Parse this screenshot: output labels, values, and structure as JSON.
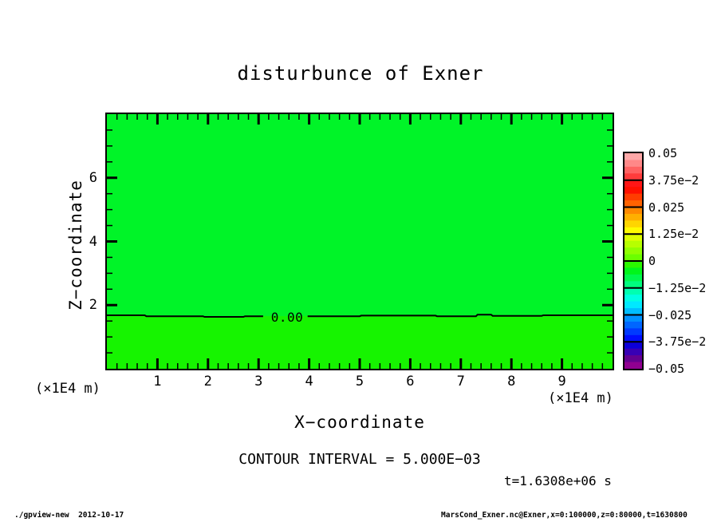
{
  "footer": {
    "left": "./gpview-new  2012-10-17",
    "right": "MarsCond_Exner.nc@Exner,x=0:100000,z=0:80000,t=1630800"
  },
  "annotations": {
    "contour_interval": "CONTOUR INTERVAL = 5.000E−03",
    "time": "t=1.6308e+06 s"
  },
  "chart_data": {
    "type": "heatmap",
    "title": "disturbunce of Exner",
    "xlabel": "X−coordinate",
    "ylabel": "Z−coordinate",
    "x_unit": "(×1E4 m)",
    "y_unit": "(×1E4 m)",
    "xlim": [
      0,
      10
    ],
    "ylim": [
      0,
      8
    ],
    "x_major_ticks": [
      1,
      2,
      3,
      4,
      5,
      6,
      7,
      8,
      9
    ],
    "x_minor_step": 0.2,
    "y_major_ticks": [
      2,
      4,
      6
    ],
    "y_minor_step": 0.5,
    "grid": false,
    "contour": {
      "label": "0.00",
      "level": 0.0,
      "level_z": 1.655,
      "segments": [
        [
          [
            0,
            1.68
          ],
          [
            0.75,
            1.68
          ],
          [
            0.78,
            1.65
          ],
          [
            1.9,
            1.65
          ],
          [
            1.93,
            1.63
          ],
          [
            2.7,
            1.63
          ],
          [
            2.73,
            1.65
          ],
          [
            3.09,
            1.65
          ]
        ],
        [
          [
            3.97,
            1.65
          ],
          [
            5.0,
            1.65
          ],
          [
            5.03,
            1.67
          ],
          [
            6.5,
            1.67
          ],
          [
            6.53,
            1.65
          ],
          [
            7.3,
            1.65
          ],
          [
            7.33,
            1.7
          ],
          [
            7.6,
            1.7
          ],
          [
            7.63,
            1.66
          ],
          [
            8.6,
            1.66
          ],
          [
            8.63,
            1.68
          ],
          [
            10,
            1.68
          ]
        ]
      ]
    },
    "regions": [
      {
        "name": "above-contour",
        "value_range": "0 to −1.25e−2",
        "color": "#00f428"
      },
      {
        "name": "below-contour",
        "value_range": "0 to 1.25e−2",
        "color": "#16f400"
      }
    ],
    "colorbar": {
      "position": "right",
      "labels": [
        "0.05",
        "3.75e−2",
        "0.025",
        "1.25e−2",
        "0",
        "−1.25e−2",
        "−0.025",
        "−3.75e−2",
        "−0.05"
      ],
      "cells": [
        [
          "#ffa8a8",
          "#ff8888",
          "#ff6262",
          "#ff3c3c"
        ],
        [
          "#ff1616",
          "#ff1000",
          "#ff3d00",
          "#ff6300"
        ],
        [
          "#ff8900",
          "#ffaf00",
          "#ffd500",
          "#fffb00"
        ],
        [
          "#ddff00",
          "#b7ff00",
          "#91ff00",
          "#6bff00"
        ],
        [
          "#2bf800",
          "#00f61b",
          "#00f94d",
          "#00fc7f"
        ],
        [
          "#00ffb1",
          "#00ffe3",
          "#00e9ff",
          "#00bdff"
        ],
        [
          "#0091ff",
          "#0066ff",
          "#003aff",
          "#000eff"
        ],
        [
          "#0c00d8",
          "#3800b4",
          "#640090",
          "#900090"
        ]
      ]
    }
  }
}
